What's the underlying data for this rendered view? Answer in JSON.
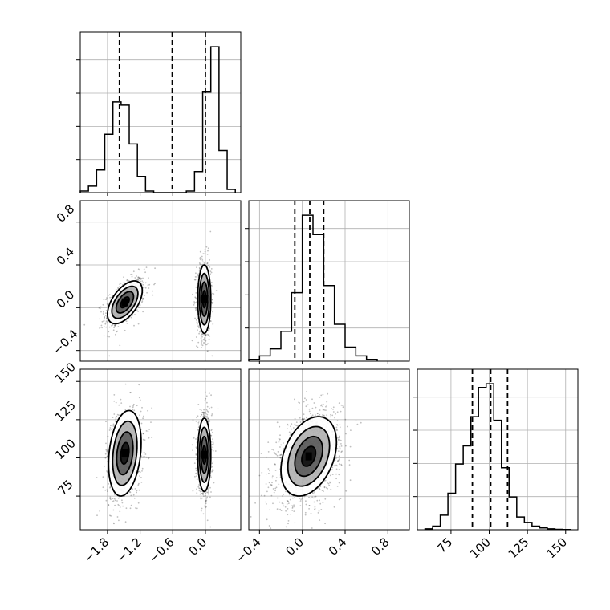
{
  "chart_data": {
    "type": "corner",
    "parameters": [
      "",
      "",
      ""
    ],
    "ranges": [
      [
        -2.3,
        0.65
      ],
      [
        -0.5,
        1.0
      ],
      [
        53,
        158
      ]
    ],
    "ticks": [
      {
        "values": [
          -1.8,
          -1.2,
          -0.6,
          0.0
        ],
        "labels": [
          "−1.8",
          "−1.2",
          "−0.6",
          "0.0"
        ]
      },
      {
        "values": [
          -0.4,
          0.0,
          0.4,
          0.8
        ],
        "labels": [
          "−0.4",
          "0.0",
          "0.4",
          "0.8"
        ]
      },
      {
        "values": [
          75,
          100,
          125,
          150
        ],
        "labels": [
          "75",
          "100",
          "125",
          "150"
        ]
      }
    ],
    "grid": true,
    "histograms": [
      {
        "param": 0,
        "edges": [
          -2.3,
          -2.15,
          -2.0,
          -1.85,
          -1.7,
          -1.55,
          -1.4,
          -1.25,
          -1.1,
          -0.95,
          -0.8,
          -0.65,
          -0.5,
          -0.35,
          -0.2,
          -0.05,
          0.1,
          0.25,
          0.4,
          0.55
        ],
        "counts": [
          0.01,
          0.04,
          0.14,
          0.36,
          0.56,
          0.54,
          0.3,
          0.1,
          0.01,
          0.0,
          0.0,
          0.0,
          0.0,
          0.01,
          0.13,
          0.62,
          0.9,
          0.26,
          0.02
        ],
        "quantiles": [
          -1.58,
          -0.61,
          0.0
        ]
      },
      {
        "param": 1,
        "edges": [
          -0.5,
          -0.4,
          -0.3,
          -0.2,
          -0.1,
          0.0,
          0.1,
          0.2,
          0.3,
          0.4,
          0.5,
          0.6,
          0.7
        ],
        "counts": [
          0.01,
          0.03,
          0.07,
          0.17,
          0.39,
          0.83,
          0.72,
          0.43,
          0.21,
          0.08,
          0.03,
          0.01
        ],
        "quantiles": [
          -0.07,
          0.07,
          0.2
        ]
      },
      {
        "param": 2,
        "edges": [
          58,
          63,
          68,
          73,
          78,
          83,
          88,
          93,
          98,
          103,
          108,
          113,
          118,
          123,
          128,
          133,
          138,
          143,
          148,
          153
        ],
        "counts": [
          0.005,
          0.02,
          0.08,
          0.2,
          0.36,
          0.46,
          0.62,
          0.78,
          0.8,
          0.6,
          0.34,
          0.18,
          0.07,
          0.04,
          0.02,
          0.01,
          0.005,
          0.002,
          0.001
        ],
        "quantiles": [
          89,
          101,
          112
        ]
      }
    ],
    "joint": [
      {
        "x": 0,
        "y": 1,
        "modes": [
          {
            "mx": -1.48,
            "my": 0.05,
            "sx": 0.16,
            "sy": 0.1,
            "rho": 0.55,
            "weight": 0.5
          },
          {
            "mx": -0.02,
            "my": 0.08,
            "sx": 0.06,
            "sy": 0.16,
            "rho": 0.0,
            "weight": 0.5
          }
        ]
      },
      {
        "x": 0,
        "y": 2,
        "modes": [
          {
            "mx": -1.48,
            "my": 103,
            "sx": 0.15,
            "sy": 14,
            "rho": 0.25,
            "weight": 0.5
          },
          {
            "mx": -0.02,
            "my": 102,
            "sx": 0.06,
            "sy": 12,
            "rho": 0.0,
            "weight": 0.5
          }
        ]
      },
      {
        "x": 1,
        "y": 2,
        "modes": [
          {
            "mx": 0.06,
            "my": 101,
            "sx": 0.13,
            "sy": 13,
            "rho": 0.35,
            "weight": 1.0
          }
        ]
      }
    ],
    "levels": [
      0.5,
      1.0,
      1.5,
      2.0
    ]
  }
}
